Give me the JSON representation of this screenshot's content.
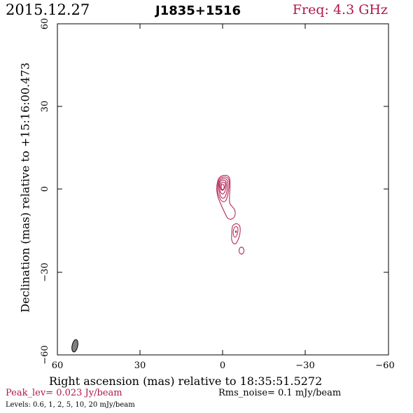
{
  "header": {
    "date": "2015.12.27",
    "source": "J1835+1516",
    "frequency": "Freq: 4.3 GHz"
  },
  "plot": {
    "xlabel": "Right ascension (mas) relative to 18:35:51.5272",
    "ylabel": "Declination (mas) relative to +15:16:00.473",
    "x_ticks": [
      "60",
      "30",
      "0",
      "−30",
      "−60"
    ],
    "y_ticks": [
      "60",
      "30",
      "0",
      "−30",
      "−60"
    ],
    "x_range_mas": [
      60,
      -60
    ],
    "y_range_mas": [
      -60,
      60
    ],
    "contour_color": "#b0174a",
    "beam_color": "#808080"
  },
  "footer": {
    "peak": "Peak_lev=  0.023 Jy/beam",
    "rms": "Rms_noise=  0.1 mJy/beam",
    "levels": "Levels: 0.6,   1,   2,   5,   10,   20 mJy/beam"
  }
}
